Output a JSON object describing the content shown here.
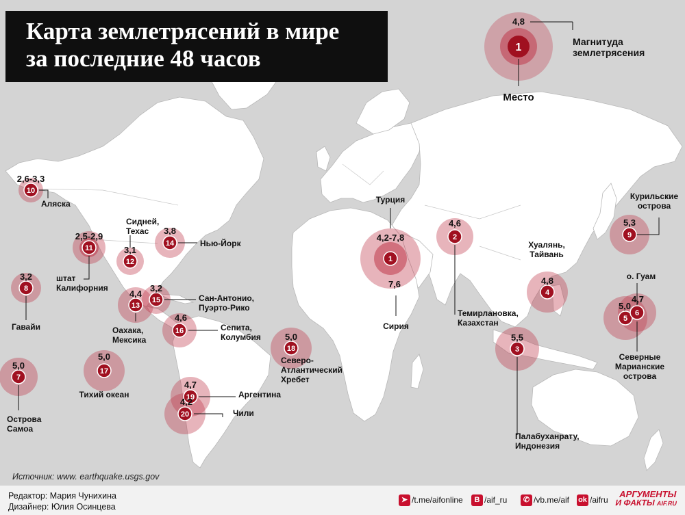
{
  "title": {
    "line1": "Карта землетрясений в мире",
    "line2": "за последние 48 часов"
  },
  "legend": {
    "magnitude_example": "4,8",
    "place_example": "1",
    "magnitude_label_1": "Магнитуда",
    "magnitude_label_2": "землетрясения",
    "place_label": "Место"
  },
  "events": [
    {
      "num": "1",
      "mag": "4,2-7,8",
      "label": [
        "Турция"
      ]
    },
    {
      "num": "1",
      "mag": "7,6",
      "label": [
        "Сирия"
      ]
    },
    {
      "num": "2",
      "mag": "4,6",
      "label": [
        "Темирлановка,",
        "Казахстан"
      ]
    },
    {
      "num": "3",
      "mag": "5,5",
      "label": [
        "Палабуханрату,",
        "Индонезия"
      ]
    },
    {
      "num": "4",
      "mag": "4,8",
      "label": [
        "Хуалянь,",
        "Тайвань"
      ]
    },
    {
      "num": "5",
      "mag": "5,0",
      "label": [
        "о. Гуам"
      ]
    },
    {
      "num": "6",
      "mag": "4,7",
      "label": [
        "Северные",
        "Марианские",
        "острова"
      ]
    },
    {
      "num": "7",
      "mag": "5,0",
      "label": [
        "Острова",
        "Самоа"
      ]
    },
    {
      "num": "8",
      "mag": "3,2",
      "label": [
        "Гавайи"
      ]
    },
    {
      "num": "9",
      "mag": "5,3",
      "label": [
        "Курильские",
        "острова"
      ]
    },
    {
      "num": "10",
      "mag": "2,6-3,3",
      "label": [
        "Аляска"
      ]
    },
    {
      "num": "11",
      "mag": "2,5-2,9",
      "label": [
        "штат",
        "Калифорния"
      ]
    },
    {
      "num": "12",
      "mag": "3,1",
      "label": [
        "Сидней,",
        "Техас"
      ]
    },
    {
      "num": "13",
      "mag": "4,4",
      "label": [
        "Оахака,",
        "Мексика"
      ]
    },
    {
      "num": "14",
      "mag": "3,8",
      "label": [
        "Нью-Йорк"
      ]
    },
    {
      "num": "15",
      "mag": "3,2",
      "label": [
        "Сан-Антонио,",
        "Пуэрто-Рико"
      ]
    },
    {
      "num": "16",
      "mag": "4,6",
      "label": [
        "Сепита,",
        "Колумбия"
      ]
    },
    {
      "num": "17",
      "mag": "5,0",
      "label": [
        "Тихий океан"
      ]
    },
    {
      "num": "18",
      "mag": "5,0",
      "label": [
        "Северо-",
        "Атлантический",
        "Хребет"
      ]
    },
    {
      "num": "19",
      "mag": "4,7",
      "label": [
        "Аргентина"
      ]
    },
    {
      "num": "20",
      "mag": "4,2",
      "label": [
        "Чили"
      ]
    }
  ],
  "source": "Источник: www. earthquake.usgs.gov",
  "credits": {
    "editor": "Редактор: Мария Чунихина",
    "designer": "Дизайнер: Юлия Осинцева"
  },
  "social": {
    "telegram": "/t.me/aifonline",
    "vk": "/aif_ru",
    "viber": "/vb.me/aif",
    "ok": "/aifru"
  },
  "logo": {
    "line1": "АРГУМЕНТЫ",
    "line2": "И ФАКТЫ",
    "site": "AIF.RU"
  },
  "colors": {
    "background": "#d4d4d4",
    "land": "#ffffff",
    "halo": "#c0394b",
    "marker": "#a01020",
    "title_bg": "#0f0f0f"
  }
}
